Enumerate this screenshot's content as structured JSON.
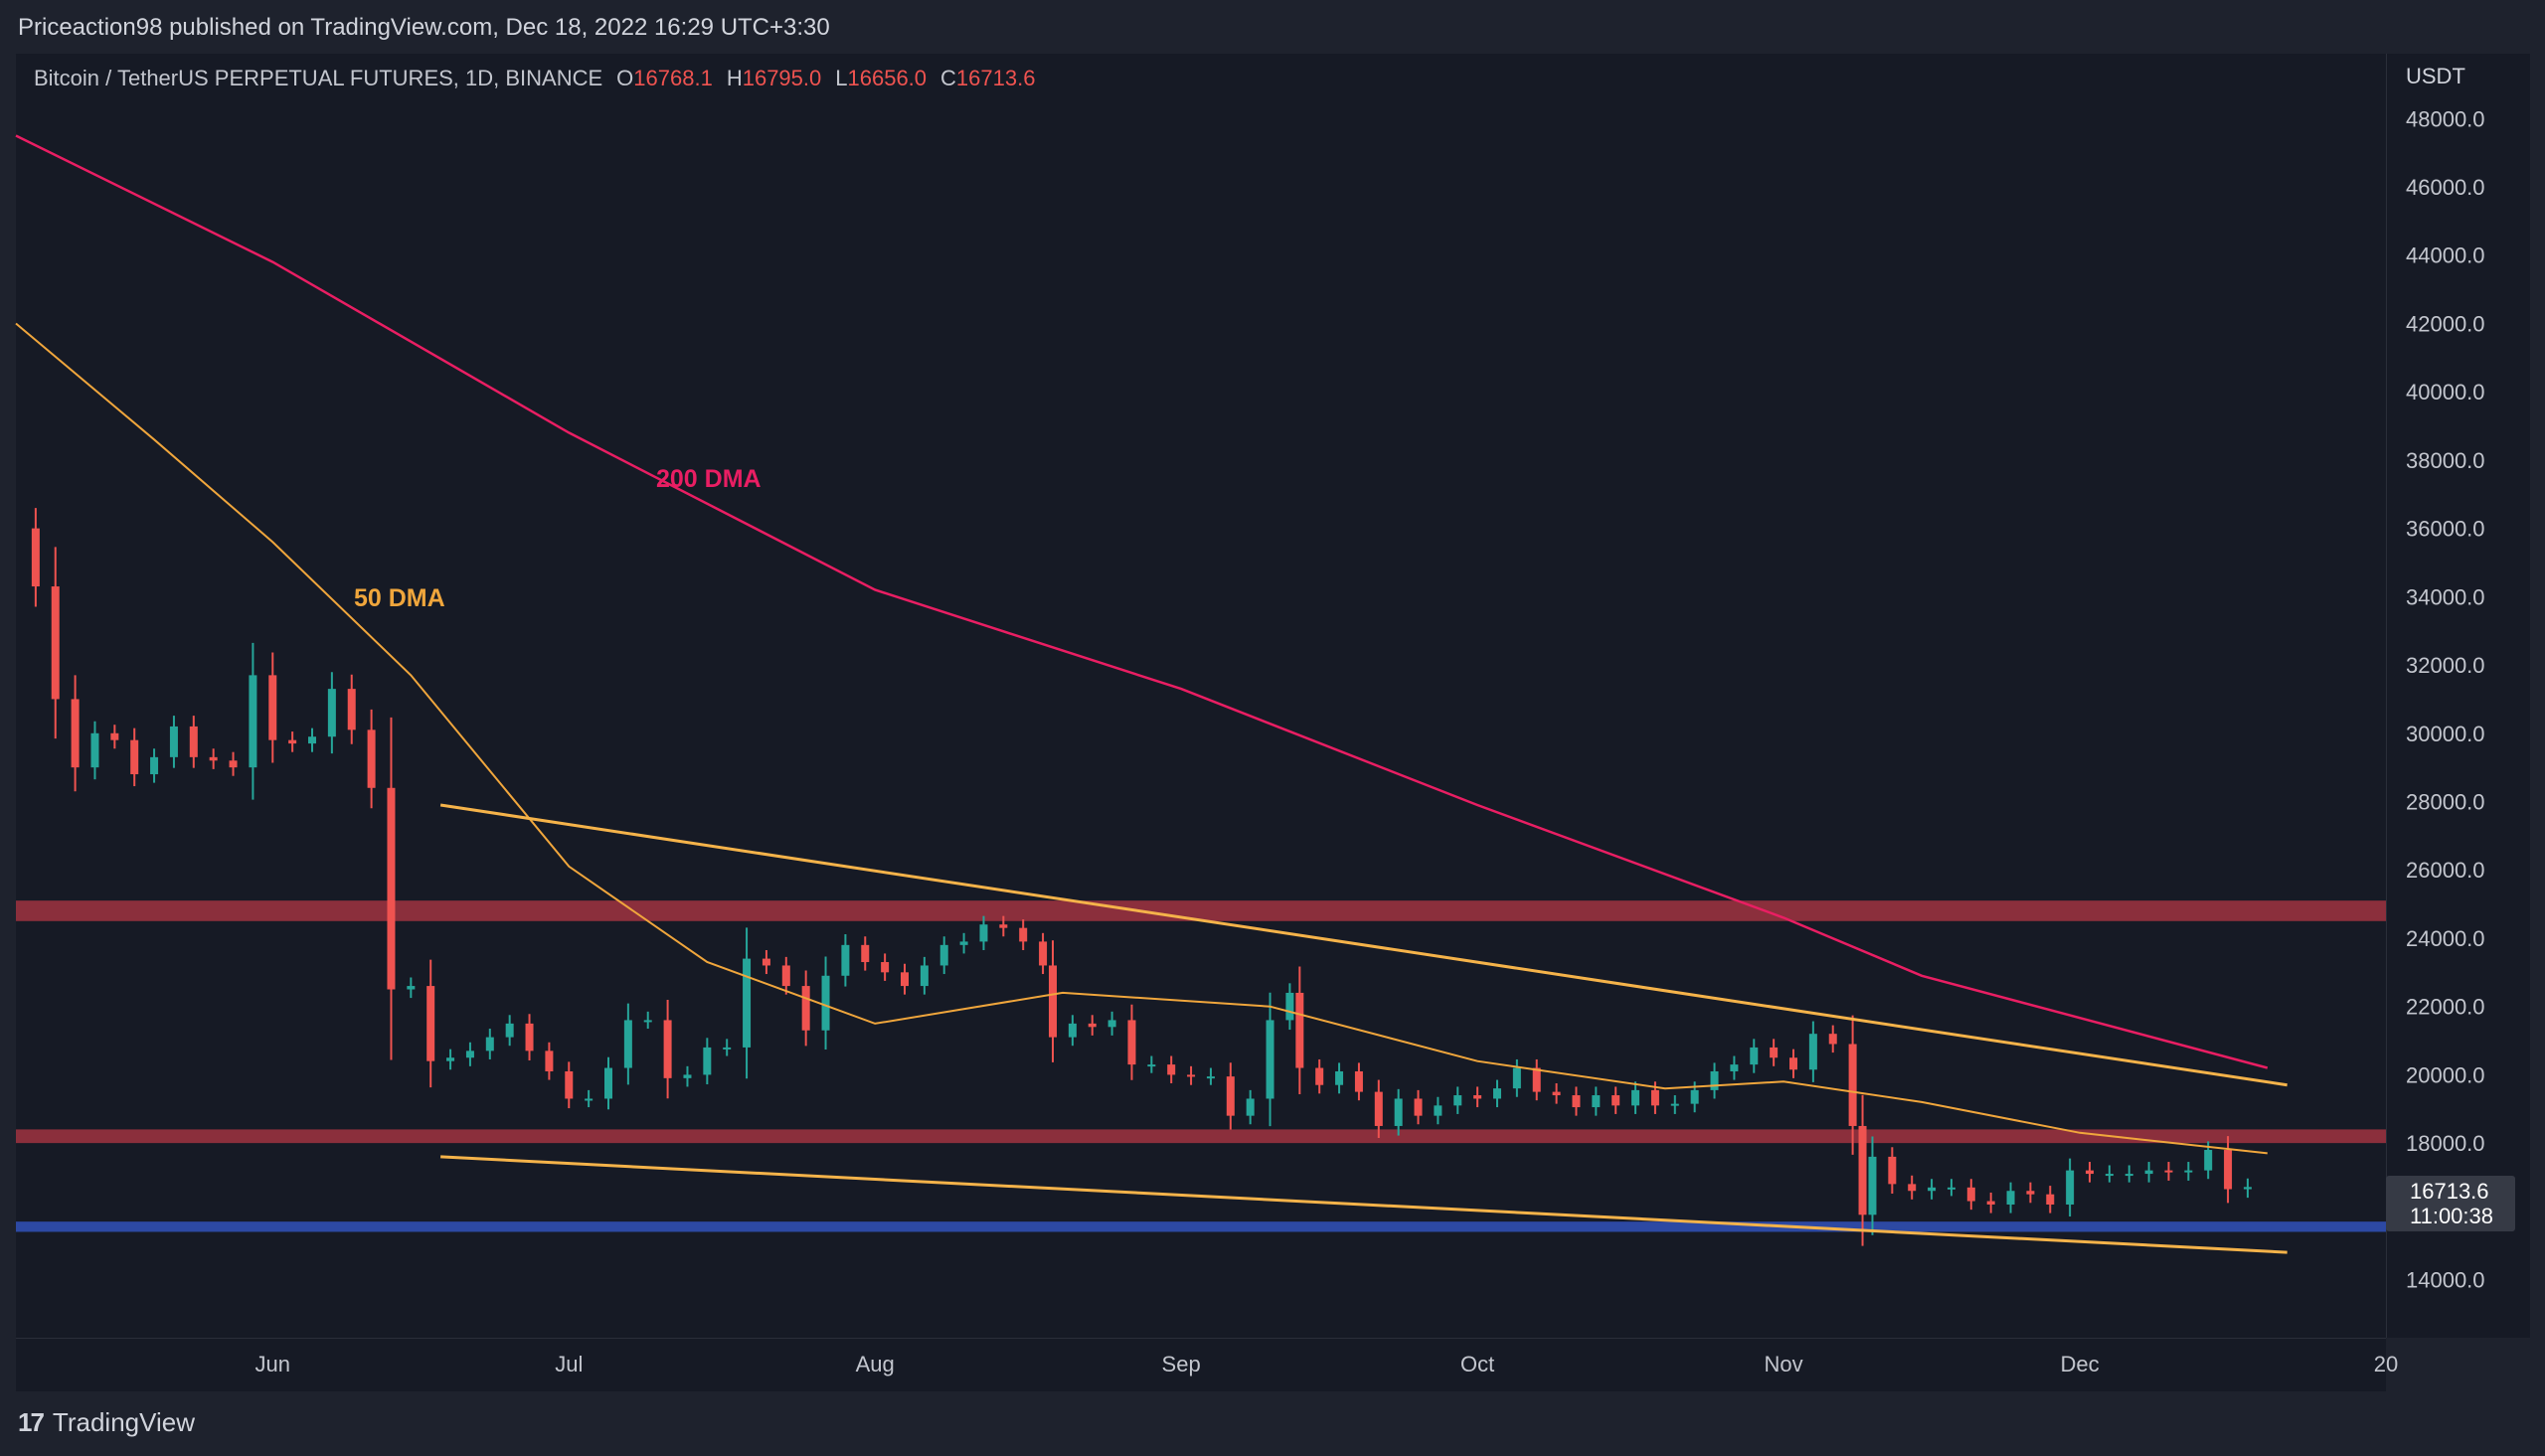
{
  "header": {
    "published": "Priceaction98 published on TradingView.com, Dec 18, 2022 16:29 UTC+3:30"
  },
  "legend": {
    "symbol": "Bitcoin / TetherUS PERPETUAL FUTURES, 1D, BINANCE",
    "open_label": "O",
    "open": "16768.1",
    "high_label": "H",
    "high": "16795.0",
    "low_label": "L",
    "low": "16656.0",
    "close_label": "C",
    "close": "16713.6"
  },
  "price_axis": {
    "currency": "USDT",
    "ticks": [
      "48000.0",
      "46000.0",
      "44000.0",
      "42000.0",
      "40000.0",
      "38000.0",
      "36000.0",
      "34000.0",
      "32000.0",
      "30000.0",
      "28000.0",
      "26000.0",
      "24000.0",
      "22000.0",
      "20000.0",
      "18000.0",
      "14000.0"
    ],
    "last_price": "16713.6",
    "countdown": "11:00:38"
  },
  "time_axis": {
    "ticks": [
      "Jun",
      "Jul",
      "Aug",
      "Sep",
      "Oct",
      "Nov",
      "Dec",
      "20"
    ]
  },
  "annotations": {
    "ma200_label": "200 DMA",
    "ma50_label": "50 DMA"
  },
  "footer": {
    "brand": "TradingView",
    "logo": "17"
  },
  "colors": {
    "up": "#26a69a",
    "down": "#ef5350",
    "ma200": "#e91e63",
    "ma50": "#f0a63c",
    "trendline": "#f5b34a",
    "resistance_zone": "#8b2f3c",
    "support_zone": "#2d49a3"
  },
  "chart_data": {
    "type": "candlestick",
    "symbol": "Bitcoin / TetherUS PERPETUAL FUTURES",
    "interval": "1D",
    "ylim": [
      12300,
      49900
    ],
    "x_range": [
      "2022-05-06",
      "2023-01-01"
    ],
    "y_ticks": [
      14000,
      18000,
      20000,
      22000,
      24000,
      26000,
      28000,
      30000,
      32000,
      34000,
      36000,
      38000,
      40000,
      42000,
      44000,
      46000,
      48000
    ],
    "x_ticks": [
      "Jun",
      "Jul",
      "Aug",
      "Sep",
      "Oct",
      "Nov",
      "Dec",
      "20"
    ],
    "closes": [
      {
        "date": "2022-05-06",
        "close": 36000
      },
      {
        "date": "2022-05-08",
        "close": 34300
      },
      {
        "date": "2022-05-10",
        "close": 31000
      },
      {
        "date": "2022-05-12",
        "close": 29000
      },
      {
        "date": "2022-05-14",
        "close": 30000
      },
      {
        "date": "2022-05-16",
        "close": 29800
      },
      {
        "date": "2022-05-18",
        "close": 28800
      },
      {
        "date": "2022-05-20",
        "close": 29300
      },
      {
        "date": "2022-05-22",
        "close": 30200
      },
      {
        "date": "2022-05-24",
        "close": 29300
      },
      {
        "date": "2022-05-26",
        "close": 29200
      },
      {
        "date": "2022-05-28",
        "close": 29000
      },
      {
        "date": "2022-05-30",
        "close": 31700
      },
      {
        "date": "2022-06-01",
        "close": 29800
      },
      {
        "date": "2022-06-03",
        "close": 29700
      },
      {
        "date": "2022-06-05",
        "close": 29900
      },
      {
        "date": "2022-06-07",
        "close": 31300
      },
      {
        "date": "2022-06-09",
        "close": 30100
      },
      {
        "date": "2022-06-11",
        "close": 28400
      },
      {
        "date": "2022-06-13",
        "close": 22500
      },
      {
        "date": "2022-06-15",
        "close": 22600
      },
      {
        "date": "2022-06-17",
        "close": 20400
      },
      {
        "date": "2022-06-19",
        "close": 20500
      },
      {
        "date": "2022-06-21",
        "close": 20700
      },
      {
        "date": "2022-06-23",
        "close": 21100
      },
      {
        "date": "2022-06-25",
        "close": 21500
      },
      {
        "date": "2022-06-27",
        "close": 20700
      },
      {
        "date": "2022-06-29",
        "close": 20100
      },
      {
        "date": "2022-07-01",
        "close": 19300
      },
      {
        "date": "2022-07-03",
        "close": 19300
      },
      {
        "date": "2022-07-05",
        "close": 20200
      },
      {
        "date": "2022-07-07",
        "close": 21600
      },
      {
        "date": "2022-07-09",
        "close": 21600
      },
      {
        "date": "2022-07-11",
        "close": 19900
      },
      {
        "date": "2022-07-13",
        "close": 20000
      },
      {
        "date": "2022-07-15",
        "close": 20800
      },
      {
        "date": "2022-07-17",
        "close": 20800
      },
      {
        "date": "2022-07-19",
        "close": 23400
      },
      {
        "date": "2022-07-21",
        "close": 23200
      },
      {
        "date": "2022-07-23",
        "close": 22600
      },
      {
        "date": "2022-07-25",
        "close": 21300
      },
      {
        "date": "2022-07-27",
        "close": 22900
      },
      {
        "date": "2022-07-29",
        "close": 23800
      },
      {
        "date": "2022-07-31",
        "close": 23300
      },
      {
        "date": "2022-08-02",
        "close": 23000
      },
      {
        "date": "2022-08-04",
        "close": 22600
      },
      {
        "date": "2022-08-06",
        "close": 23200
      },
      {
        "date": "2022-08-08",
        "close": 23800
      },
      {
        "date": "2022-08-10",
        "close": 23900
      },
      {
        "date": "2022-08-12",
        "close": 24400
      },
      {
        "date": "2022-08-14",
        "close": 24300
      },
      {
        "date": "2022-08-16",
        "close": 23900
      },
      {
        "date": "2022-08-18",
        "close": 23200
      },
      {
        "date": "2022-08-19",
        "close": 21100
      },
      {
        "date": "2022-08-21",
        "close": 21500
      },
      {
        "date": "2022-08-23",
        "close": 21400
      },
      {
        "date": "2022-08-25",
        "close": 21600
      },
      {
        "date": "2022-08-27",
        "close": 20300
      },
      {
        "date": "2022-08-29",
        "close": 20300
      },
      {
        "date": "2022-08-31",
        "close": 20000
      },
      {
        "date": "2022-09-02",
        "close": 19950
      },
      {
        "date": "2022-09-04",
        "close": 19950
      },
      {
        "date": "2022-09-06",
        "close": 18800
      },
      {
        "date": "2022-09-08",
        "close": 19300
      },
      {
        "date": "2022-09-10",
        "close": 21600
      },
      {
        "date": "2022-09-12",
        "close": 22400
      },
      {
        "date": "2022-09-13",
        "close": 20200
      },
      {
        "date": "2022-09-15",
        "close": 19700
      },
      {
        "date": "2022-09-17",
        "close": 20100
      },
      {
        "date": "2022-09-19",
        "close": 19500
      },
      {
        "date": "2022-09-21",
        "close": 18500
      },
      {
        "date": "2022-09-23",
        "close": 19300
      },
      {
        "date": "2022-09-25",
        "close": 18800
      },
      {
        "date": "2022-09-27",
        "close": 19100
      },
      {
        "date": "2022-09-29",
        "close": 19400
      },
      {
        "date": "2022-10-01",
        "close": 19300
      },
      {
        "date": "2022-10-03",
        "close": 19600
      },
      {
        "date": "2022-10-05",
        "close": 20200
      },
      {
        "date": "2022-10-07",
        "close": 19500
      },
      {
        "date": "2022-10-09",
        "close": 19400
      },
      {
        "date": "2022-10-11",
        "close": 19050
      },
      {
        "date": "2022-10-13",
        "close": 19400
      },
      {
        "date": "2022-10-15",
        "close": 19100
      },
      {
        "date": "2022-10-17",
        "close": 19550
      },
      {
        "date": "2022-10-19",
        "close": 19100
      },
      {
        "date": "2022-10-21",
        "close": 19150
      },
      {
        "date": "2022-10-23",
        "close": 19550
      },
      {
        "date": "2022-10-25",
        "close": 20100
      },
      {
        "date": "2022-10-27",
        "close": 20300
      },
      {
        "date": "2022-10-29",
        "close": 20800
      },
      {
        "date": "2022-10-31",
        "close": 20500
      },
      {
        "date": "2022-11-02",
        "close": 20150
      },
      {
        "date": "2022-11-04",
        "close": 21200
      },
      {
        "date": "2022-11-06",
        "close": 20900
      },
      {
        "date": "2022-11-08",
        "close": 18500
      },
      {
        "date": "2022-11-09",
        "close": 15900
      },
      {
        "date": "2022-11-10",
        "close": 17600
      },
      {
        "date": "2022-11-12",
        "close": 16800
      },
      {
        "date": "2022-11-14",
        "close": 16600
      },
      {
        "date": "2022-11-16",
        "close": 16700
      },
      {
        "date": "2022-11-18",
        "close": 16700
      },
      {
        "date": "2022-11-20",
        "close": 16300
      },
      {
        "date": "2022-11-22",
        "close": 16200
      },
      {
        "date": "2022-11-24",
        "close": 16600
      },
      {
        "date": "2022-11-26",
        "close": 16500
      },
      {
        "date": "2022-11-28",
        "close": 16200
      },
      {
        "date": "2022-11-30",
        "close": 17200
      },
      {
        "date": "2022-12-02",
        "close": 17100
      },
      {
        "date": "2022-12-04",
        "close": 17100
      },
      {
        "date": "2022-12-06",
        "close": 17100
      },
      {
        "date": "2022-12-08",
        "close": 17200
      },
      {
        "date": "2022-12-10",
        "close": 17150
      },
      {
        "date": "2022-12-12",
        "close": 17200
      },
      {
        "date": "2022-12-14",
        "close": 17800
      },
      {
        "date": "2022-12-16",
        "close": 16650
      },
      {
        "date": "2022-12-18",
        "close": 16713.6
      }
    ],
    "ma_200": [
      {
        "date": "2022-05-06",
        "value": 47500
      },
      {
        "date": "2022-06-01",
        "value": 43800
      },
      {
        "date": "2022-07-01",
        "value": 38800
      },
      {
        "date": "2022-08-01",
        "value": 34200
      },
      {
        "date": "2022-09-01",
        "value": 31300
      },
      {
        "date": "2022-10-01",
        "value": 27900
      },
      {
        "date": "2022-11-01",
        "value": 24600
      },
      {
        "date": "2022-11-15",
        "value": 22900
      },
      {
        "date": "2022-12-20",
        "value": 20200
      }
    ],
    "ma_50": [
      {
        "date": "2022-05-06",
        "value": 42000
      },
      {
        "date": "2022-05-20",
        "value": 38600
      },
      {
        "date": "2022-06-01",
        "value": 35600
      },
      {
        "date": "2022-06-15",
        "value": 31700
      },
      {
        "date": "2022-07-01",
        "value": 26100
      },
      {
        "date": "2022-07-15",
        "value": 23300
      },
      {
        "date": "2022-08-01",
        "value": 21500
      },
      {
        "date": "2022-08-20",
        "value": 22400
      },
      {
        "date": "2022-09-10",
        "value": 22000
      },
      {
        "date": "2022-10-01",
        "value": 20400
      },
      {
        "date": "2022-10-20",
        "value": 19600
      },
      {
        "date": "2022-11-01",
        "value": 19800
      },
      {
        "date": "2022-11-15",
        "value": 19200
      },
      {
        "date": "2022-12-01",
        "value": 18300
      },
      {
        "date": "2022-12-20",
        "value": 17700
      }
    ],
    "trendlines": [
      {
        "start": {
          "date": "2022-06-18",
          "value": 27900
        },
        "end": {
          "date": "2022-12-22",
          "value": 19700
        }
      },
      {
        "start": {
          "date": "2022-06-18",
          "value": 17600
        },
        "end": {
          "date": "2022-12-22",
          "value": 14800
        }
      }
    ],
    "zones": [
      {
        "from": 24500,
        "to": 25100,
        "kind": "resistance"
      },
      {
        "from": 18000,
        "to": 18400,
        "kind": "resistance"
      },
      {
        "from": 15400,
        "to": 15700,
        "kind": "support"
      }
    ]
  }
}
